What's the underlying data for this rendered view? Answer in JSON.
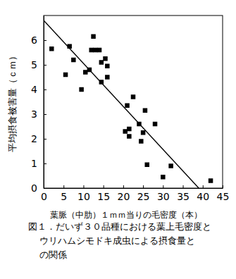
{
  "chart_data": {
    "type": "scatter",
    "title": [
      "図１．だいず３０品種における葉上毛密度と",
      "ウリハムシモドキ成虫による摂食量と",
      "の関係"
    ],
    "x_label": "葉脈（中肋）１ｍｍ当りの毛密度（本）",
    "y_label": "平均摂食被害量（ｃｍ）",
    "xlim": [
      0,
      45
    ],
    "xticks": [
      0,
      5,
      10,
      15,
      20,
      25,
      30,
      35,
      40,
      45
    ],
    "ylim": [
      0,
      7
    ],
    "yticks": [
      0,
      1,
      2,
      3,
      4,
      5,
      6
    ],
    "grid": false,
    "series": [
      {
        "type": "scatter",
        "marker": "square",
        "color": "#000000",
        "x": [
          2,
          5.5,
          6.5,
          7.5,
          9.5,
          10.5,
          11.5,
          12,
          12.5,
          13,
          14,
          14.5,
          14.5,
          15.5,
          16,
          16,
          20.5,
          21,
          21.5,
          21.5,
          22.5,
          24,
          24.5,
          25,
          25.5,
          26,
          28,
          30,
          32,
          42
        ],
        "values": [
          5.65,
          4.6,
          5.75,
          5.2,
          4.0,
          4.7,
          4.8,
          5.6,
          6.15,
          5.6,
          5.6,
          5.1,
          4.3,
          5.25,
          4.95,
          4.5,
          2.3,
          3.35,
          2.4,
          2.1,
          3.7,
          2.6,
          1.9,
          2.25,
          3.15,
          0.95,
          2.6,
          0.45,
          0.9,
          0.3
        ]
      },
      {
        "type": "line",
        "line_style": "solid",
        "color": "#000000",
        "x": [
          0,
          39
        ],
        "values": [
          6.8,
          0
        ]
      }
    ]
  }
}
